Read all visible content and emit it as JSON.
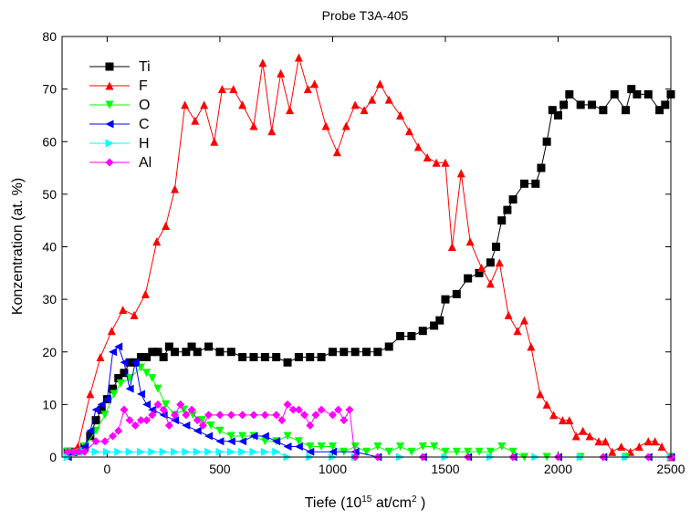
{
  "chart_data": {
    "type": "line",
    "title": "Probe T3A-405",
    "xlabel": [
      "Tiefe (10",
      "15",
      " at/cm",
      "2",
      " )"
    ],
    "ylabel": "Konzentration (at. %)",
    "xlim": [
      -200,
      2500
    ],
    "xticks": [
      0,
      500,
      1000,
      1500,
      2000,
      2500
    ],
    "ylim": [
      0,
      80
    ],
    "yticks": [
      0,
      10,
      20,
      30,
      40,
      50,
      60,
      70,
      80
    ],
    "legend": "upper left",
    "series": [
      {
        "name": "Ti",
        "color": "#000000",
        "marker": "square",
        "x": [
          -175,
          -150,
          -100,
          -75,
          -50,
          -25,
          0,
          25,
          50,
          75,
          100,
          125,
          150,
          175,
          200,
          225,
          250,
          275,
          300,
          350,
          375,
          400,
          450,
          500,
          550,
          600,
          650,
          700,
          750,
          800,
          850,
          900,
          950,
          1000,
          1050,
          1100,
          1150,
          1200,
          1250,
          1300,
          1350,
          1400,
          1450,
          1475,
          1500,
          1550,
          1600,
          1650,
          1700,
          1725,
          1750,
          1775,
          1800,
          1850,
          1900,
          1925,
          1950,
          1975,
          2000,
          2025,
          2050,
          2100,
          2150,
          2200,
          2250,
          2300,
          2325,
          2350,
          2400,
          2450,
          2475,
          2500
        ],
        "values": [
          1,
          1,
          2,
          4,
          7,
          9,
          11,
          13,
          15,
          16,
          18,
          18,
          19,
          19,
          20,
          20,
          19,
          21,
          20,
          20,
          21,
          20,
          21,
          20,
          20,
          19,
          19,
          19,
          19,
          18,
          19,
          19,
          19,
          20,
          20,
          20,
          20,
          20,
          21,
          23,
          23,
          24,
          25,
          26,
          30,
          31,
          34,
          35,
          37,
          40,
          45,
          47,
          49,
          52,
          52,
          55,
          60,
          66,
          65,
          67,
          69,
          67,
          67,
          66,
          69,
          66,
          70,
          69,
          69,
          66,
          67,
          69
        ]
      },
      {
        "name": "F",
        "color": "#ff0000",
        "marker": "triangle-up",
        "x": [
          -175,
          -130,
          -75,
          -30,
          20,
          70,
          120,
          170,
          220,
          260,
          300,
          345,
          390,
          430,
          475,
          510,
          560,
          600,
          650,
          690,
          730,
          770,
          810,
          850,
          890,
          920,
          970,
          1020,
          1060,
          1100,
          1140,
          1175,
          1210,
          1250,
          1300,
          1340,
          1380,
          1420,
          1460,
          1500,
          1530,
          1570,
          1610,
          1660,
          1700,
          1740,
          1780,
          1820,
          1850,
          1880,
          1920,
          1950,
          1980,
          2020,
          2050,
          2080,
          2110,
          2140,
          2180,
          2210,
          2240,
          2280,
          2320,
          2360,
          2400,
          2430,
          2460,
          2500
        ],
        "values": [
          1,
          2,
          12,
          19,
          24,
          28,
          27,
          31,
          41,
          44,
          51,
          67,
          64,
          67,
          60,
          70,
          70,
          67,
          63,
          75,
          62,
          73,
          66,
          76,
          70,
          71,
          63,
          58,
          63,
          67,
          66,
          68,
          71,
          68,
          65,
          62,
          59,
          57,
          56,
          56,
          40,
          54,
          41,
          36,
          33,
          37,
          27,
          24,
          26,
          21,
          12,
          10,
          8,
          7,
          7,
          4,
          5,
          4,
          3,
          3,
          1,
          2,
          1,
          2,
          3,
          3,
          2,
          0
        ]
      },
      {
        "name": "O",
        "color": "#00ff00",
        "marker": "triangle-down",
        "x": [
          -175,
          -100,
          -50,
          -10,
          30,
          60,
          100,
          150,
          175,
          200,
          225,
          260,
          300,
          340,
          380,
          420,
          460,
          500,
          550,
          600,
          650,
          700,
          750,
          800,
          850,
          900,
          950,
          1000,
          1050,
          1100,
          1150,
          1200,
          1250,
          1300,
          1350,
          1400,
          1450,
          1500,
          1550,
          1600,
          1650,
          1700,
          1750,
          1800,
          1850,
          1950,
          2100,
          2300,
          2500
        ],
        "values": [
          1,
          2,
          5,
          8,
          12,
          14,
          15,
          17,
          16,
          15,
          13,
          10,
          8,
          9,
          8,
          7,
          6,
          5,
          4,
          4,
          4,
          3,
          3,
          4,
          3,
          2,
          2,
          2,
          1,
          2,
          1,
          2,
          1,
          2,
          1,
          2,
          2,
          1,
          1,
          1,
          1,
          1,
          2,
          1,
          0,
          0,
          0,
          0,
          0
        ]
      },
      {
        "name": "C",
        "color": "#0000ff",
        "marker": "triangle-left",
        "x": [
          -175,
          -130,
          -100,
          -75,
          -50,
          -25,
          0,
          25,
          50,
          75,
          100,
          125,
          150,
          175,
          200,
          250,
          300,
          350,
          400,
          450,
          500,
          550,
          600,
          650,
          700,
          750,
          800,
          850,
          900,
          1000,
          1100,
          1200,
          1400,
          1600,
          1800,
          2000,
          2200,
          2400,
          2500
        ],
        "values": [
          0,
          1,
          2,
          5,
          9,
          10,
          11,
          20,
          21,
          18,
          13,
          18,
          12,
          10,
          9,
          8,
          7,
          6,
          5,
          4,
          3,
          3,
          3,
          4,
          4,
          3,
          2,
          2,
          1,
          1,
          1,
          0,
          0,
          0,
          0,
          0,
          0,
          0,
          0
        ]
      },
      {
        "name": "H",
        "color": "#00ffff",
        "marker": "triangle-right",
        "x": [
          -175,
          -100,
          -50,
          0,
          50,
          100,
          150,
          200,
          250,
          300,
          350,
          400,
          450,
          500,
          550,
          600,
          650,
          700,
          750,
          800,
          900,
          1000,
          1100,
          1300,
          1500,
          1700,
          1900,
          2100,
          2300,
          2500
        ],
        "values": [
          0,
          1,
          1,
          1,
          1,
          1,
          1,
          1,
          1,
          1,
          1,
          1,
          1,
          1,
          1,
          1,
          1,
          1,
          1,
          0,
          0,
          0,
          0,
          0,
          0,
          0,
          0,
          0,
          0,
          0
        ]
      },
      {
        "name": "Al",
        "color": "#ff00ff",
        "marker": "diamond",
        "x": [
          -175,
          -150,
          -125,
          -100,
          -50,
          -10,
          25,
          50,
          75,
          100,
          125,
          150,
          175,
          200,
          225,
          250,
          275,
          300,
          325,
          350,
          375,
          400,
          425,
          450,
          500,
          550,
          600,
          650,
          700,
          750,
          775,
          800,
          825,
          850,
          875,
          900,
          925,
          950,
          1000,
          1025,
          1050,
          1075,
          1100,
          1200,
          1400,
          1600,
          1800,
          2000,
          2200,
          2400,
          2500
        ],
        "values": [
          1,
          1,
          1,
          1,
          3,
          3,
          4,
          5,
          9,
          7,
          6,
          7,
          7,
          8,
          10,
          9,
          6,
          8,
          10,
          8,
          9,
          7,
          6,
          8,
          8,
          8,
          8,
          8,
          8,
          8,
          7,
          10,
          9,
          9,
          8,
          6,
          8,
          9,
          8,
          9,
          7,
          9,
          0,
          0,
          0,
          0,
          0,
          0,
          0,
          0,
          0
        ]
      }
    ]
  }
}
